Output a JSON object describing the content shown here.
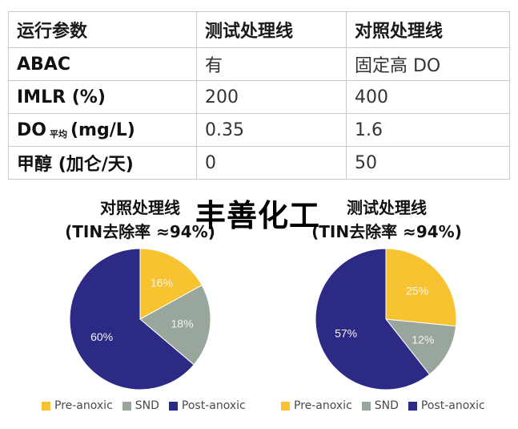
{
  "table": {
    "headers": [
      "运行参数",
      "测试处理线",
      "对照处理线"
    ],
    "rows": [
      {
        "param": "ABAC",
        "sub": "",
        "unit": "",
        "test": "有",
        "control": "固定高 DO"
      },
      {
        "param": "IMLR",
        "sub": "",
        "unit": "(%)",
        "test": "200",
        "control": "400"
      },
      {
        "param": "DO",
        "sub": "平均",
        "unit": "(mg/L)",
        "test": "0.35",
        "control": "1.6"
      },
      {
        "param": "甲醇",
        "sub": "",
        "unit": "(加仑/天)",
        "test": "0",
        "control": "50"
      }
    ]
  },
  "watermark": "丰善化工",
  "colors": {
    "pre_anoxic": "#f7c330",
    "snd": "#98a69c",
    "post_anoxic": "#2d2a86",
    "label_light": "#f4f4f4"
  },
  "chart_data": [
    {
      "type": "pie",
      "title": "对照处理线",
      "subtitle": "(TIN去除率 ≈94%)",
      "labels": [
        "Pre-anoxic",
        "SND",
        "Post-anoxic"
      ],
      "values": [
        16,
        18,
        60
      ],
      "value_labels": [
        "16%",
        "18%",
        "60%"
      ],
      "legend_position": "bottom"
    },
    {
      "type": "pie",
      "title": "测试处理线",
      "subtitle": "(TIN去除率 ≈94%)",
      "labels": [
        "Pre-anoxic",
        "SND",
        "Post-anoxic"
      ],
      "values": [
        25,
        12,
        57
      ],
      "value_labels": [
        "25%",
        "12%",
        "57%"
      ],
      "legend_position": "bottom"
    }
  ]
}
